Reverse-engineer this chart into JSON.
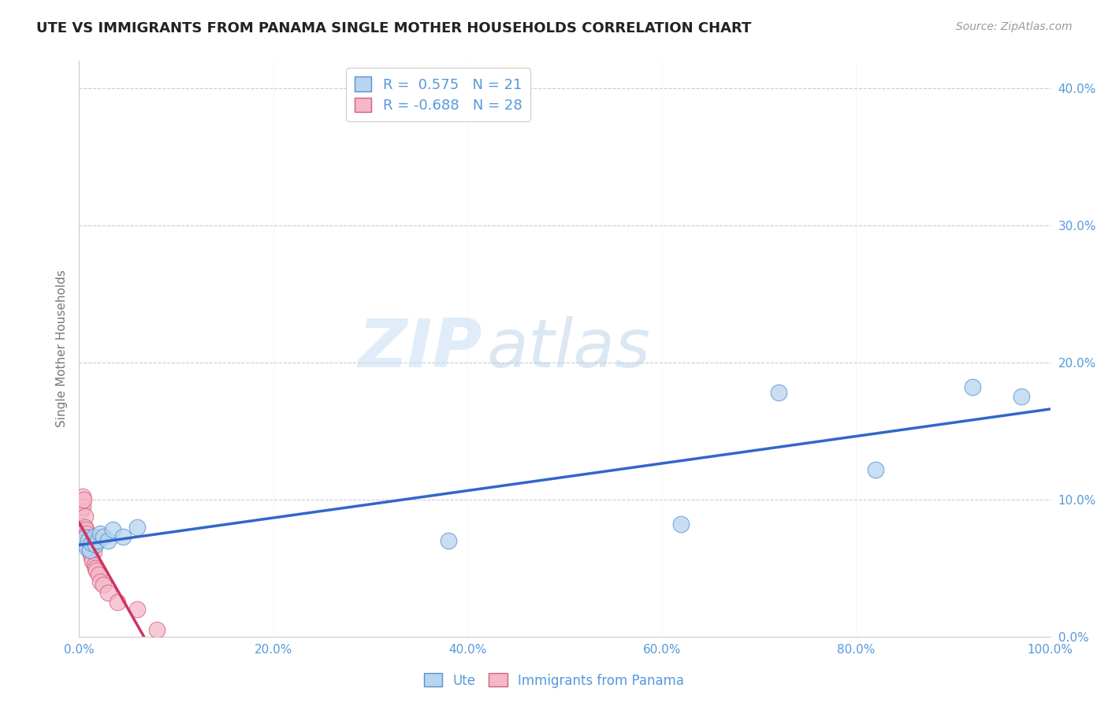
{
  "title": "UTE VS IMMIGRANTS FROM PANAMA SINGLE MOTHER HOUSEHOLDS CORRELATION CHART",
  "source": "Source: ZipAtlas.com",
  "ylabel": "Single Mother Households",
  "xlim": [
    0,
    1.0
  ],
  "ylim": [
    0,
    0.42
  ],
  "xticks": [
    0.0,
    0.2,
    0.4,
    0.6,
    0.8,
    1.0
  ],
  "yticks": [
    0.0,
    0.1,
    0.2,
    0.3,
    0.4
  ],
  "ute_r": 0.575,
  "ute_n": 21,
  "panama_r": -0.688,
  "panama_n": 28,
  "ute_color": "#b8d4ee",
  "panama_color": "#f5b8c8",
  "ute_edge_color": "#5590d0",
  "panama_edge_color": "#d06080",
  "ute_line_color": "#3366cc",
  "panama_line_color": "#cc3366",
  "watermark_zip": "ZIP",
  "watermark_atlas": "atlas",
  "background_color": "#ffffff",
  "grid_color": "#cccccc",
  "ute_x": [
    0.004,
    0.006,
    0.008,
    0.01,
    0.011,
    0.013,
    0.015,
    0.017,
    0.019,
    0.022,
    0.025,
    0.03,
    0.035,
    0.045,
    0.06,
    0.38,
    0.62,
    0.72,
    0.82,
    0.92,
    0.97
  ],
  "ute_y": [
    0.068,
    0.072,
    0.065,
    0.07,
    0.063,
    0.068,
    0.073,
    0.067,
    0.07,
    0.075,
    0.073,
    0.07,
    0.078,
    0.073,
    0.08,
    0.07,
    0.082,
    0.178,
    0.122,
    0.182,
    0.175
  ],
  "panama_x": [
    0.002,
    0.003,
    0.004,
    0.004,
    0.005,
    0.006,
    0.006,
    0.007,
    0.008,
    0.008,
    0.009,
    0.01,
    0.01,
    0.011,
    0.012,
    0.013,
    0.014,
    0.015,
    0.016,
    0.017,
    0.018,
    0.02,
    0.022,
    0.025,
    0.03,
    0.04,
    0.06,
    0.08
  ],
  "panama_y": [
    0.092,
    0.098,
    0.102,
    0.095,
    0.1,
    0.088,
    0.08,
    0.078,
    0.075,
    0.07,
    0.068,
    0.072,
    0.065,
    0.068,
    0.06,
    0.058,
    0.055,
    0.062,
    0.052,
    0.05,
    0.048,
    0.045,
    0.04,
    0.038,
    0.032,
    0.025,
    0.02,
    0.005
  ],
  "ute_line_x": [
    0.0,
    1.0
  ],
  "panama_line_x": [
    0.0,
    0.09
  ]
}
